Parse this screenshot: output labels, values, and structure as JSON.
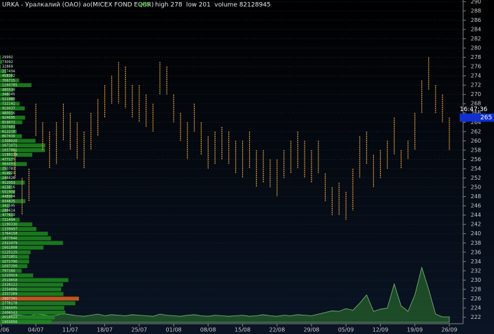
{
  "header": {
    "title": "URKA - Уралкалий (ОАО) ао(MICEX FOND EQBR)",
    "last": 265,
    "stats": "high 278  low 201  volume 82128945",
    "time": "16:47:36"
  },
  "chart_data": {
    "type": "ohlc-bars",
    "color": "#e8a040",
    "grid": true,
    "ylim": [
      220.6,
      290.2
    ],
    "yticks": [
      222,
      224,
      226,
      228,
      230,
      232,
      234,
      236,
      238,
      240,
      242,
      244,
      246,
      248,
      250,
      252,
      254,
      256,
      258,
      260,
      262,
      264,
      266,
      268,
      270,
      272,
      274,
      276,
      278,
      280,
      282,
      284,
      286,
      288,
      290
    ],
    "xlim": [
      0,
      67
    ],
    "xticks": [
      {
        "value": 0,
        "label": "27/06"
      },
      {
        "value": 5,
        "label": "04/07"
      },
      {
        "value": 10,
        "label": "11/07"
      },
      {
        "value": 15,
        "label": "18/07"
      },
      {
        "value": 20,
        "label": "25/07"
      },
      {
        "value": 25,
        "label": "01/08"
      },
      {
        "value": 30,
        "label": "08/08"
      },
      {
        "value": 35,
        "label": "15/08"
      },
      {
        "value": 40,
        "label": "22/08"
      },
      {
        "value": 45,
        "label": "29/08"
      },
      {
        "value": 50,
        "label": "05/09"
      },
      {
        "value": 55,
        "label": "12/09"
      },
      {
        "value": 60,
        "label": "19/09"
      },
      {
        "value": 65,
        "label": "26/09"
      }
    ],
    "high": [
      null,
      null,
      258,
      252,
      254,
      268,
      264,
      262,
      264,
      268,
      266,
      264,
      262,
      266,
      269,
      272,
      274,
      277,
      276,
      272,
      272,
      270,
      268,
      277,
      276,
      270,
      266,
      264,
      268,
      264,
      261,
      262,
      263,
      262,
      260,
      260,
      262,
      258,
      258,
      256,
      256,
      258,
      260,
      262,
      260,
      258,
      260,
      253,
      250,
      251,
      249,
      254,
      261,
      262,
      257,
      258,
      260,
      265,
      258,
      260,
      266,
      273,
      278,
      272,
      270,
      265
    ],
    "low": [
      null,
      null,
      252,
      244,
      247,
      261,
      258,
      254,
      255,
      260,
      258,
      256,
      254,
      258,
      261,
      265,
      268,
      268,
      267,
      265,
      264,
      263,
      262,
      270,
      270,
      264,
      260,
      256,
      262,
      257,
      254,
      255,
      256,
      255,
      253,
      252,
      254,
      250,
      251,
      250,
      248,
      252,
      253,
      254,
      252,
      251,
      253,
      247,
      244,
      244,
      243,
      245,
      252,
      255,
      250,
      252,
      254,
      257,
      254,
      256,
      258,
      266,
      271,
      266,
      264,
      258
    ],
    "volume": {
      "color": "#2e7a2e",
      "values": [
        1.2,
        1.2,
        1.4,
        1.3,
        1.1,
        1.5,
        1.4,
        1.2,
        1.3,
        1.6,
        1.4,
        1.2,
        1.1,
        1.3,
        1.5,
        1.2,
        1.4,
        1.3,
        1.2,
        1.4,
        1.3,
        1.2,
        1.1,
        1.5,
        1.3,
        1.2,
        1.1,
        1.3,
        1.4,
        1.2,
        1.1,
        1.3,
        1.2,
        1.1,
        1.2,
        1.3,
        1.1,
        1.2,
        1.4,
        1.2,
        1.1,
        1.3,
        1.2,
        1.4,
        1.3,
        1.2,
        1.5,
        1.8,
        2.1,
        2.0,
        2.5,
        2.2,
        3.5,
        5.0,
        2.0,
        2.4,
        2.6,
        7.0,
        3.0,
        2.0,
        5.0,
        10.0,
        6.0,
        1.5,
        1.0,
        1.0
      ]
    },
    "profile": {
      "color": "#1f8a1f",
      "max_color": "#e06020",
      "levels": [
        278,
        277,
        276,
        275,
        274,
        273,
        272,
        271,
        270,
        269,
        268,
        267,
        266,
        265,
        264,
        263,
        262,
        261,
        260,
        259,
        258,
        257,
        256,
        255,
        254,
        253,
        252,
        251,
        250,
        249,
        248,
        247,
        246,
        245,
        244,
        243,
        242,
        241,
        240,
        239,
        238,
        237,
        236,
        235,
        234,
        233,
        232,
        231,
        230,
        229,
        228,
        227,
        226,
        225,
        224,
        223,
        222,
        221
      ],
      "values": [
        29992,
        73092,
        32869,
        227494,
        458382,
        706715,
        1160785,
        480538,
        348045,
        521980,
        722142,
        910037,
        480016,
        924695,
        819072,
        557483,
        612218,
        807430,
        1308020,
        1671071,
        1657881,
        1188139,
        477175,
        984493,
        253783,
        419023,
        248626,
        912053,
        423816,
        551900,
        448994,
        934825,
        342595,
        288614,
        477810,
        721494,
        1190330,
        1339497,
        1764158,
        1877640,
        2321079,
        1601808,
        1125125,
        1072851,
        1071790,
        1007200,
        797160,
        1220919,
        2519658,
        2326122,
        2254806,
        2337289,
        2907341,
        2776178,
        2366695,
        2406543,
        2018522,
        1902656
      ]
    }
  }
}
